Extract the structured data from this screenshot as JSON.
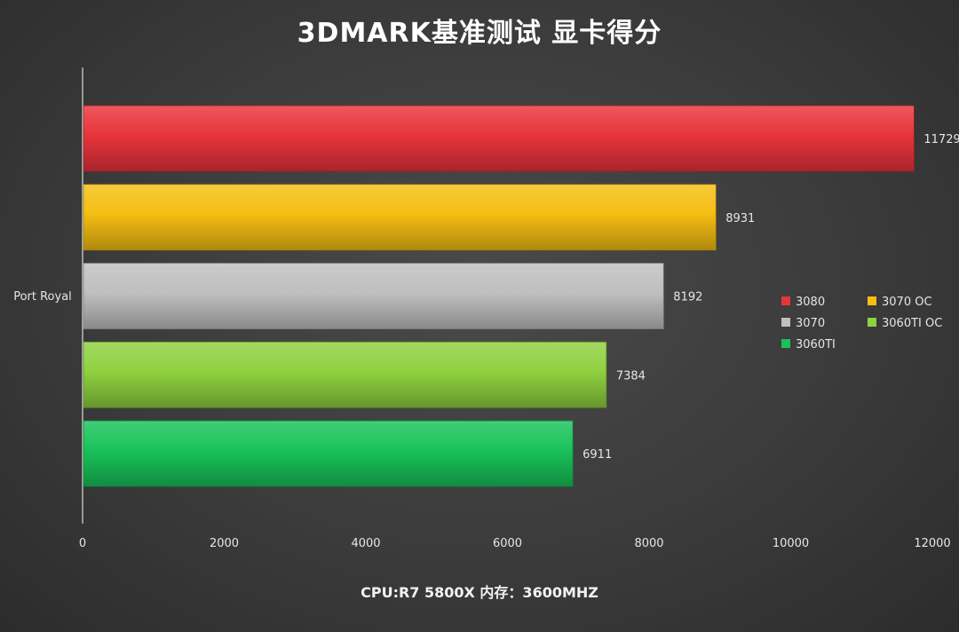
{
  "chart_data": {
    "type": "bar",
    "orientation": "horizontal",
    "title": "3DMARK基准测试 显卡得分",
    "subtitle": "CPU:R7 5800X 内存：3600MHZ",
    "categories": [
      "Port Royal"
    ],
    "series": [
      {
        "name": "3080",
        "values": [
          11729
        ],
        "color": "#e8343b"
      },
      {
        "name": "3070 OC",
        "values": [
          8931
        ],
        "color": "#f5be12"
      },
      {
        "name": "3070",
        "values": [
          8192
        ],
        "color": "#bfbfbf"
      },
      {
        "name": "3060TI OC",
        "values": [
          7384
        ],
        "color": "#8fd13f"
      },
      {
        "name": "3060TI",
        "values": [
          6911
        ],
        "color": "#19c25a"
      }
    ],
    "value_labels": [
      "11729",
      "8931",
      "8192",
      "7384",
      "6911"
    ],
    "xlim": [
      0,
      12000
    ],
    "x_ticks": [
      0,
      2000,
      4000,
      6000,
      8000,
      10000,
      12000
    ],
    "x_tick_labels": [
      "0",
      "2000",
      "4000",
      "6000",
      "8000",
      "10000",
      "12000"
    ],
    "xlabel": "",
    "ylabel": "",
    "grid": false,
    "legend": "right"
  }
}
